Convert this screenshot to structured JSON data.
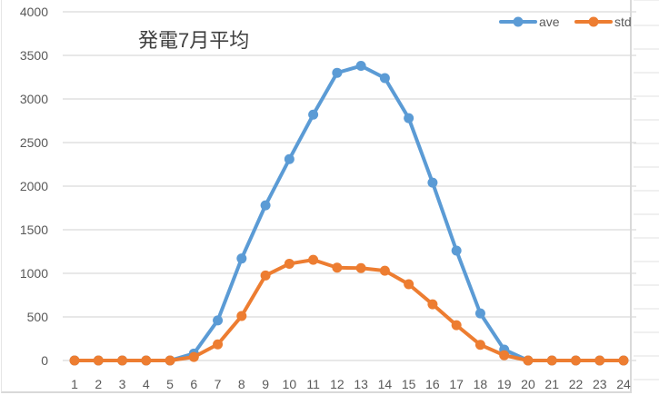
{
  "chart_data": {
    "type": "line",
    "title": "発電7月平均",
    "xlabel": "",
    "ylabel": "",
    "categories": [
      "1",
      "2",
      "3",
      "4",
      "5",
      "6",
      "7",
      "8",
      "9",
      "10",
      "11",
      "12",
      "13",
      "14",
      "15",
      "16",
      "17",
      "18",
      "19",
      "20",
      "21",
      "22",
      "23",
      "24"
    ],
    "series": [
      {
        "name": "ave",
        "color": "#5B9BD5",
        "values": [
          0,
          0,
          0,
          0,
          0,
          80,
          460,
          1170,
          1780,
          2310,
          2820,
          3300,
          3380,
          3240,
          2780,
          2040,
          1260,
          540,
          125,
          0,
          0,
          0,
          0,
          0
        ]
      },
      {
        "name": "std",
        "color": "#ED7D31",
        "values": [
          0,
          0,
          0,
          0,
          0,
          40,
          185,
          510,
          975,
          1110,
          1155,
          1065,
          1060,
          1030,
          875,
          645,
          405,
          180,
          60,
          0,
          0,
          0,
          0,
          0
        ]
      }
    ],
    "ylim": [
      0,
      4000
    ],
    "yticks": [
      "0",
      "500",
      "1000",
      "1500",
      "2000",
      "2500",
      "3000",
      "3500",
      "4000"
    ],
    "grid": true,
    "legend_position": "top-right"
  }
}
